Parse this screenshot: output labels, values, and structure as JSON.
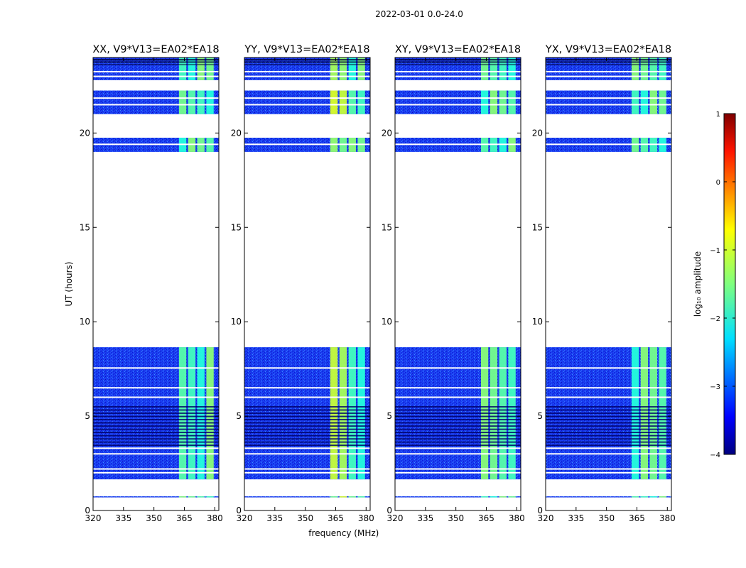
{
  "chart_data": {
    "type": "heatmap",
    "suptitle": "2022-03-01 0.0-24.0",
    "xlabel": "frequency (MHz)",
    "ylabel": "UT (hours)",
    "xlim": [
      320,
      382
    ],
    "ylim": [
      0,
      24
    ],
    "xticks": [
      320,
      335,
      350,
      365,
      380
    ],
    "yticks": [
      0,
      5,
      10,
      15,
      20
    ],
    "panels": [
      {
        "title": "XX, V9*V13=EA02*EA18",
        "pol": "XX"
      },
      {
        "title": "YY, V9*V13=EA02*EA18",
        "pol": "YY"
      },
      {
        "title": "XY, V9*V13=EA02*EA18",
        "pol": "XY"
      },
      {
        "title": "YX, V9*V13=EA02*EA18",
        "pol": "YX"
      }
    ],
    "data_time_ranges_hours": [
      [
        0.7,
        0.75
      ],
      [
        1.65,
        8.65
      ],
      [
        19.0,
        19.75
      ],
      [
        21.0,
        22.25
      ],
      [
        22.8,
        24.0
      ]
    ],
    "bright_freq_band_mhz": [
      362,
      380
    ],
    "background_log_amplitude": -3.2,
    "band_log_amplitude": -1.8,
    "colorbar": {
      "label": "log₁₀ amplitude",
      "min": -4,
      "max": 1,
      "ticks": [
        "1",
        "0",
        "−1",
        "−2",
        "−3",
        "−4"
      ],
      "tick_values": [
        1,
        0,
        -1,
        -2,
        -3,
        -4
      ],
      "colormap": "jet"
    }
  }
}
